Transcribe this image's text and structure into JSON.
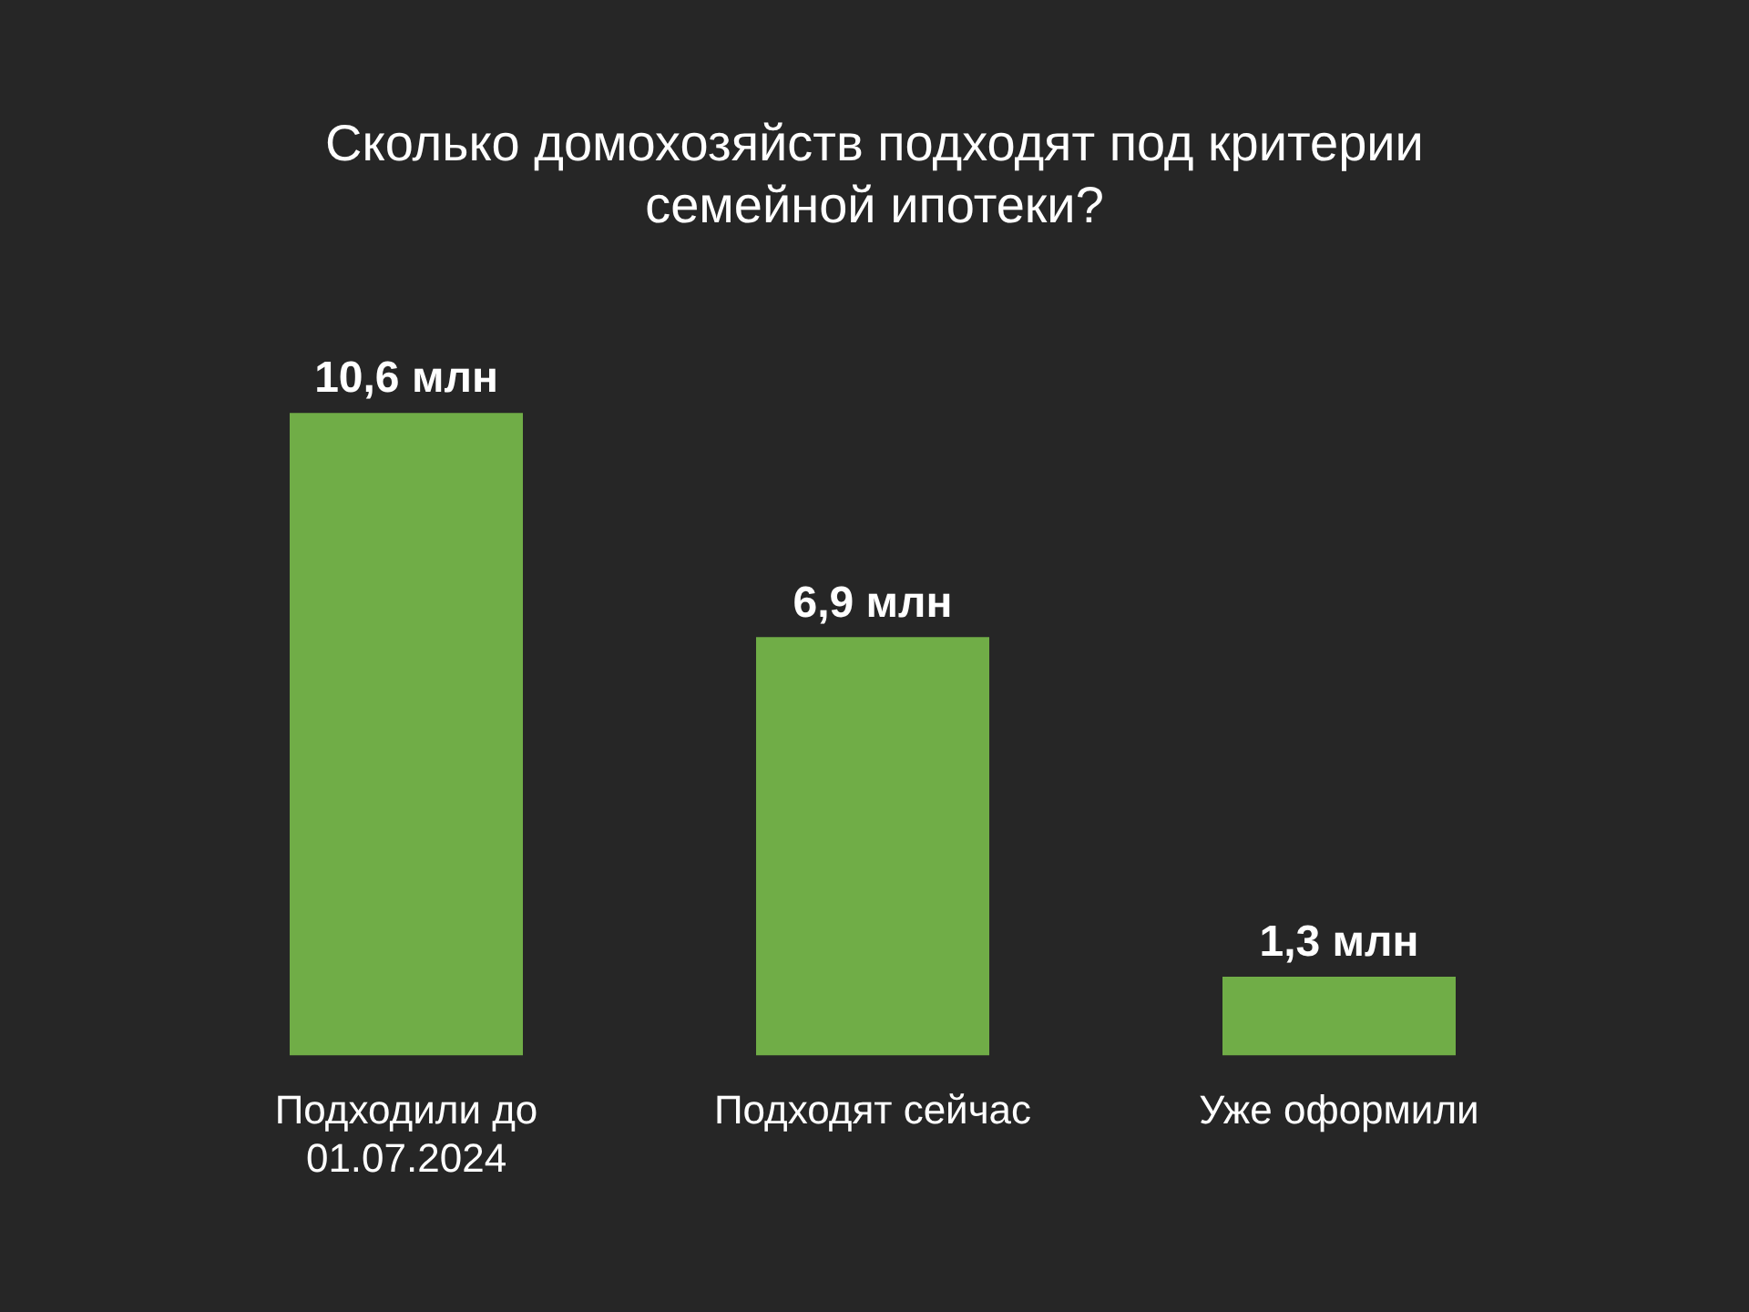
{
  "chart_data": {
    "type": "bar",
    "title": "Сколько домохозяйств подходят под критерии семейной ипотеки?",
    "categories": [
      "Подходили до 01.07.2024",
      "Подходят сейчас",
      "Уже оформили"
    ],
    "values": [
      10.6,
      6.9,
      1.3
    ],
    "value_labels": [
      "10,6 млн",
      "6,9 млн",
      "1,3 млн"
    ],
    "color": "#70ad47",
    "legend": false
  }
}
